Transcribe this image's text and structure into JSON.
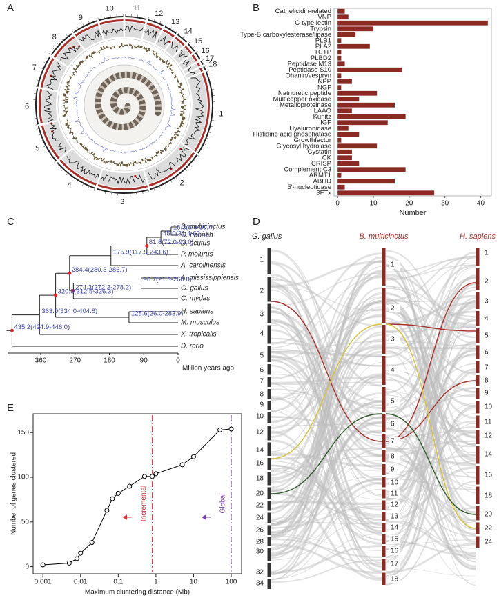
{
  "panels": [
    "A",
    "B",
    "C",
    "D",
    "E"
  ],
  "circos": {
    "chromosomes": [
      "1",
      "2",
      "3",
      "4",
      "5",
      "6",
      "7",
      "8",
      "9",
      "10",
      "11",
      "12",
      "13",
      "14",
      "15",
      "16",
      "17",
      "18"
    ]
  },
  "synteny": {
    "genomes": [
      {
        "name": "G. gallus",
        "chromosomes": [
          "1",
          "2",
          "3",
          "4",
          "5",
          "6",
          "7",
          "8",
          "9",
          "10",
          "12",
          "14",
          "16",
          "18",
          "20",
          "22",
          "24",
          "26",
          "28",
          "30",
          "32",
          "34"
        ]
      },
      {
        "name": "B. multicinctus",
        "chromosomes": [
          "1",
          "2",
          "3",
          "4",
          "5",
          "6",
          "7",
          "8",
          "9",
          "10",
          "11",
          "12",
          "13",
          "14",
          "15",
          "16",
          "17",
          "18"
        ]
      },
      {
        "name": "H. sapiens",
        "chromosomes": [
          "1",
          "2",
          "3",
          "4",
          "5",
          "6",
          "7",
          "8",
          "9",
          "10",
          "11",
          "12",
          "14",
          "16",
          "18",
          "20",
          "22",
          "24"
        ]
      }
    ]
  },
  "chart_data": [
    {
      "type": "bar",
      "orientation": "horizontal",
      "categories": [
        "Cathelicidin-related",
        "VNP",
        "C-type lectin",
        "Trypsin",
        "Type-B carboxylesterase/lipase",
        "PLB1",
        "PLA2",
        "TCTP",
        "PLBD2",
        "Peptidase M13",
        "Peptidase S10",
        "Ohanin/vespryn",
        "NPP",
        "NGF",
        "Natriuretic peptide",
        "Multicopper oxidase",
        "Metalloproteinase",
        "LAAO",
        "Kunitz",
        "IGF",
        "Hyaluronidase",
        "Histidine acid phosphatase",
        "Growthfactor",
        "Glycosyl hydrolase",
        "Cystatin",
        "CK",
        "CRISP",
        "Complement C3",
        "ARMT1",
        "ABHD",
        "5'-nucleotidase",
        "3FTx"
      ],
      "values": [
        2,
        3,
        42,
        10,
        5,
        1,
        9,
        1,
        1,
        2,
        18,
        1,
        4,
        1,
        11,
        6,
        16,
        4,
        19,
        14,
        3,
        6,
        1,
        11,
        4,
        4,
        6,
        19,
        1,
        16,
        2,
        27
      ],
      "color": "#8b2a22",
      "xlim": [
        -1,
        43
      ],
      "xticks": [
        0,
        10,
        20,
        30,
        40
      ],
      "xlabel": "Number"
    },
    {
      "type": "tree",
      "tips": [
        "B. multicinctus",
        "O. hannah",
        "D. acutus",
        "P. molurus",
        "A. carolinensis",
        "A. mississippiensis",
        "G. gallus",
        "C. mydas",
        "H. sapiens",
        "M. musculus",
        "X. tropicalis",
        "D. rerio"
      ],
      "nodes": [
        {
          "age": 18.3,
          "label": "18.3(8.9-30.4)"
        },
        {
          "age": 45.0,
          "label": "45.0(31.4-62.1)"
        },
        {
          "age": 81.8,
          "label": "81.8(72.0-92.0)"
        },
        {
          "age": 175.9,
          "label": "175.9(117.9-243.6)"
        },
        {
          "age": 96.7,
          "label": "96.7(21.3-268.8)"
        },
        {
          "age": 274.3,
          "label": "274.3(272.2-278.2)"
        },
        {
          "age": 284.4,
          "label": "284.4(280.3-286.7)"
        },
        {
          "age": 128.6,
          "label": "128.6(26.0-283.9)"
        },
        {
          "age": 320.9,
          "label": "320.9(312.5-326.3)"
        },
        {
          "age": 363.0,
          "label": "363.0(334.0-404.8)"
        },
        {
          "age": 435.2,
          "label": "435.2(424.9-446.0)"
        }
      ],
      "xlim": [
        445,
        0
      ],
      "xticks": [
        360,
        270,
        180,
        90,
        0
      ],
      "xlabel": "Million years ago"
    },
    {
      "type": "line",
      "x": [
        0.001,
        0.005,
        0.008,
        0.01,
        0.02,
        0.05,
        0.07,
        0.1,
        0.2,
        0.5,
        0.8,
        1,
        5,
        10,
        50,
        100
      ],
      "values": [
        2,
        4,
        9,
        15,
        27,
        63,
        76,
        82,
        90,
        101,
        101,
        104,
        114,
        123,
        153,
        154
      ],
      "color": "#000000",
      "xlog": true,
      "xlim": [
        0.00055,
        188
      ],
      "xticks": [
        0.001,
        0.01,
        0.1,
        1,
        10,
        100
      ],
      "ylim": [
        -8,
        171
      ],
      "yticks": [
        0,
        50,
        100,
        150
      ],
      "xlabel": "Maximum clustering distance (Mb)",
      "ylabel": "Number of genes clustered",
      "vlines": [
        {
          "x": 0.8,
          "label": "Incremental",
          "color": "#e0303a"
        },
        {
          "x": 100,
          "label": "Global",
          "color": "#7b3fa8"
        }
      ]
    }
  ]
}
